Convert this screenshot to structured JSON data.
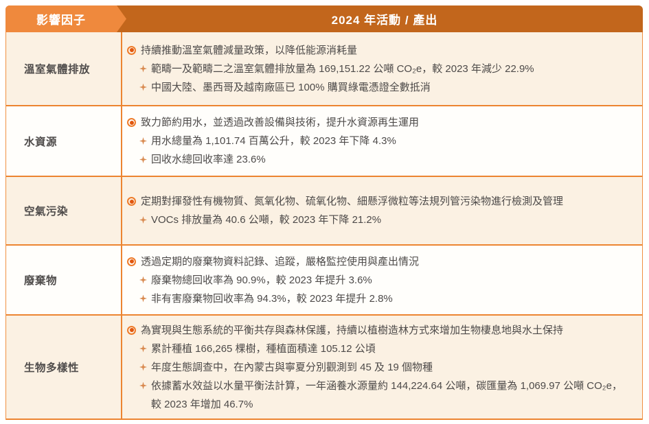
{
  "header": {
    "col1": "影響因子",
    "col2": "2024 年活動 / 產出"
  },
  "icons": {
    "main_bullet": "ring-bullet",
    "sub_bullet": "four-pointed-star"
  },
  "colors": {
    "header_dark_orange": "#C2661C",
    "header_light_orange": "#EF893D",
    "row_cream": "#FBF1E3",
    "row_white": "#FFFEFB",
    "grid_border": "#EC8430",
    "bullet_ring": "#EE7B2A",
    "bullet_dot": "#E1560E",
    "star": "#D98A50",
    "text": "#4D4A49"
  },
  "rows": [
    {
      "factor": "溫室氣體排放",
      "main": "持續推動溫室氣體減量政策，以降低能源消耗量",
      "subs": [
        "範疇一及範疇二之溫室氣體排放量為 169,151.22 公噸 CO₂e，較 2023 年減少 22.9%",
        "中國大陸、墨西哥及越南廠區已 100% 購買綠電憑證全數抵消"
      ]
    },
    {
      "factor": "水資源",
      "main": "致力節約用水，並透過改善設備與技術，提升水資源再生運用",
      "subs": [
        "用水總量為 1,101.74 百萬公升，較 2023 年下降 4.3%",
        "回收水總回收率達 23.6%"
      ]
    },
    {
      "factor": "空氣污染",
      "main": "定期對揮發性有機物質、氮氧化物、硫氧化物、細懸浮微粒等法規列管污染物進行檢測及管理",
      "subs": [
        "VOCs 排放量為 40.6 公噸，較 2023 年下降 21.2%"
      ]
    },
    {
      "factor": "廢棄物",
      "main": "透過定期的廢棄物資料記錄、追蹤，嚴格監控使用與產出情況",
      "subs": [
        "廢棄物總回收率為 90.9%，較 2023 年提升 3.6%",
        "非有害廢棄物回收率為 94.3%，較 2023 年提升 2.8%"
      ]
    },
    {
      "factor": "生物多樣性",
      "main": "為實現與生態系統的平衡共存與森林保護，持續以植樹造林方式來增加生物棲息地與水土保持",
      "subs": [
        "累計種植 166,265 棵樹，種植面積達 105.12 公頃",
        "年度生態調查中，在內蒙古與寧夏分別觀測到 45 及 19 個物種",
        "依據蓄水效益以水量平衡法計算，一年涵養水源量約 144,224.64 公噸，碳匯量為 1,069.97 公噸 CO₂e，較 2023 年增加 46.7%"
      ]
    }
  ]
}
